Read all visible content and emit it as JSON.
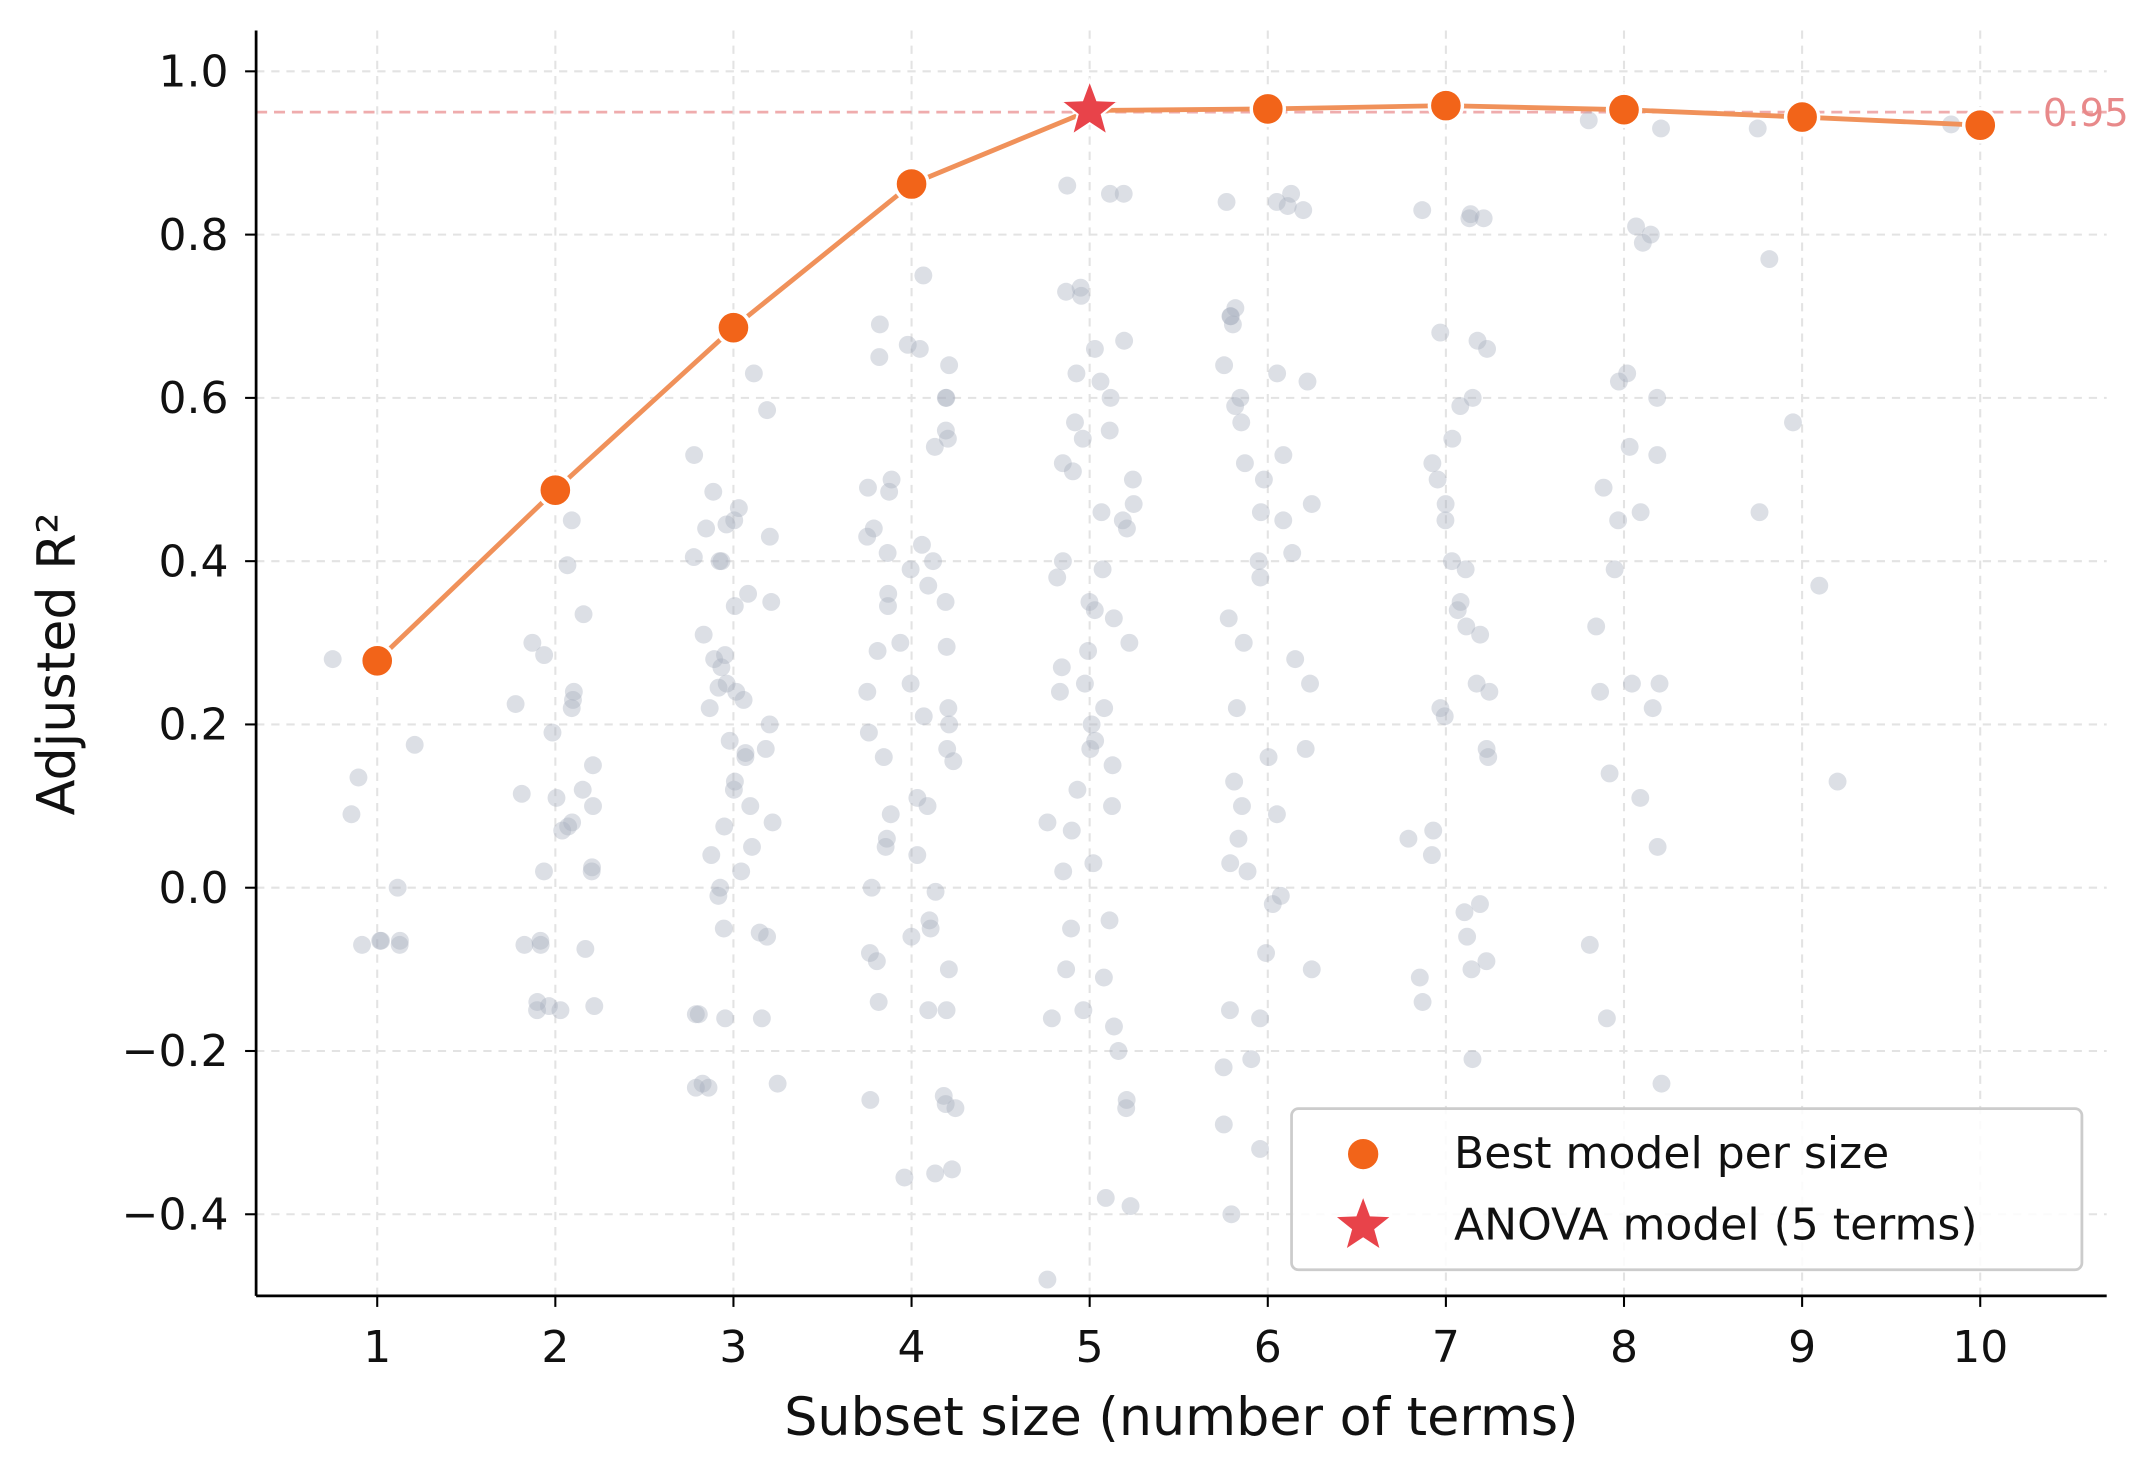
{
  "chart_data": {
    "type": "scatter",
    "xlabel": "Subset size (number of terms)",
    "ylabel": "Adjusted R²",
    "xlim": [
      0.32,
      10.71
    ],
    "ylim": [
      -0.5,
      1.05
    ],
    "xticks": [
      1,
      2,
      3,
      4,
      5,
      6,
      7,
      8,
      9,
      10
    ],
    "xtick_labels": [
      "1",
      "2",
      "3",
      "4",
      "5",
      "6",
      "7",
      "8",
      "9",
      "10"
    ],
    "yticks": [
      -0.4,
      -0.2,
      0.0,
      0.2,
      0.4,
      0.6,
      0.8,
      1.0
    ],
    "ytick_labels": [
      "−0.4",
      "−0.2",
      "0.0",
      "0.2",
      "0.4",
      "0.6",
      "0.8",
      "1.0"
    ],
    "grid": true,
    "legend_placement": "lower-right",
    "reference_line": {
      "y": 0.95,
      "label": "0.95",
      "color": "#e8898a"
    },
    "series": [
      {
        "name": "Best model per size",
        "type": "line+markers",
        "color": "#f26419",
        "line_color": "#f0915a",
        "x": [
          1,
          2,
          3,
          4,
          5,
          6,
          7,
          8,
          9,
          10
        ],
        "y": [
          0.278,
          0.487,
          0.686,
          0.862,
          0.952,
          0.954,
          0.958,
          0.953,
          0.944,
          0.934
        ]
      },
      {
        "name": "ANOVA model (5 terms)",
        "type": "star",
        "color": "#e8434a",
        "x": [
          5
        ],
        "y": [
          0.952
        ]
      },
      {
        "type": "scatter",
        "color": "#a8b0bd",
        "points_by_size": {
          "1": [
            0.28,
            0.175,
            0.135,
            0.09,
            0.0,
            -0.065,
            -0.07,
            -0.07,
            -0.065,
            -0.065
          ],
          "2": [
            0.45,
            0.395,
            0.335,
            0.3,
            0.285,
            0.24,
            0.23,
            0.225,
            0.22,
            0.19,
            0.15,
            0.12,
            0.115,
            0.11,
            0.1,
            0.08,
            0.075,
            0.07,
            0.025,
            0.02,
            0.02,
            -0.07,
            -0.075,
            -0.065,
            -0.07,
            -0.14,
            -0.145,
            -0.15,
            -0.145,
            -0.15
          ],
          "3": [
            0.63,
            0.585,
            0.53,
            0.485,
            0.465,
            0.45,
            0.445,
            0.44,
            0.43,
            0.405,
            0.4,
            0.4,
            0.36,
            0.35,
            0.345,
            0.31,
            0.285,
            0.28,
            0.27,
            0.25,
            0.245,
            0.24,
            0.23,
            0.22,
            0.2,
            0.18,
            0.17,
            0.165,
            0.16,
            0.13,
            0.12,
            0.1,
            0.08,
            0.075,
            0.05,
            0.04,
            0.02,
            0.0,
            -0.01,
            -0.05,
            -0.055,
            -0.06,
            -0.155,
            -0.16,
            -0.155,
            -0.16,
            -0.24,
            -0.245,
            -0.24,
            -0.245
          ],
          "4": [
            0.75,
            0.69,
            0.665,
            0.66,
            0.65,
            0.64,
            0.6,
            0.6,
            0.56,
            0.55,
            0.54,
            0.5,
            0.49,
            0.485,
            0.44,
            0.43,
            0.42,
            0.41,
            0.4,
            0.39,
            0.37,
            0.36,
            0.35,
            0.345,
            0.3,
            0.295,
            0.29,
            0.25,
            0.24,
            0.22,
            0.21,
            0.2,
            0.19,
            0.17,
            0.16,
            0.155,
            0.11,
            0.1,
            0.09,
            0.06,
            0.05,
            0.04,
            0.0,
            -0.005,
            -0.04,
            -0.05,
            -0.06,
            -0.08,
            -0.09,
            -0.1,
            -0.14,
            -0.15,
            -0.15,
            -0.26,
            -0.265,
            -0.255,
            -0.27,
            -0.345,
            -0.35,
            -0.355
          ],
          "5": [
            0.86,
            0.85,
            0.85,
            0.735,
            0.73,
            0.725,
            0.67,
            0.66,
            0.63,
            0.62,
            0.6,
            0.57,
            0.56,
            0.55,
            0.52,
            0.51,
            0.5,
            0.47,
            0.46,
            0.45,
            0.44,
            0.4,
            0.39,
            0.38,
            0.35,
            0.34,
            0.33,
            0.3,
            0.29,
            0.27,
            0.25,
            0.24,
            0.22,
            0.2,
            0.18,
            0.17,
            0.15,
            0.12,
            0.1,
            0.08,
            0.07,
            0.03,
            0.02,
            -0.04,
            -0.05,
            -0.1,
            -0.11,
            -0.15,
            -0.16,
            -0.17,
            -0.2,
            -0.26,
            -0.27,
            -0.38,
            -0.39,
            -0.48
          ],
          "6": [
            0.85,
            0.84,
            0.835,
            0.83,
            0.84,
            0.71,
            0.7,
            0.69,
            0.7,
            0.64,
            0.63,
            0.62,
            0.6,
            0.59,
            0.57,
            0.53,
            0.52,
            0.5,
            0.47,
            0.46,
            0.45,
            0.41,
            0.4,
            0.38,
            0.33,
            0.3,
            0.28,
            0.25,
            0.22,
            0.17,
            0.16,
            0.13,
            0.1,
            0.09,
            0.06,
            0.03,
            0.02,
            -0.01,
            -0.02,
            -0.08,
            -0.1,
            -0.15,
            -0.16,
            -0.21,
            -0.22,
            -0.29,
            -0.32,
            -0.4
          ],
          "7": [
            0.83,
            0.82,
            0.825,
            0.82,
            0.68,
            0.67,
            0.66,
            0.6,
            0.59,
            0.55,
            0.52,
            0.5,
            0.47,
            0.45,
            0.4,
            0.39,
            0.35,
            0.34,
            0.32,
            0.31,
            0.25,
            0.24,
            0.22,
            0.21,
            0.17,
            0.16,
            0.07,
            0.06,
            0.04,
            -0.02,
            -0.03,
            -0.06,
            -0.09,
            -0.1,
            -0.11,
            -0.14,
            -0.21
          ],
          "8": [
            0.94,
            0.93,
            0.8,
            0.81,
            0.79,
            0.63,
            0.62,
            0.6,
            0.54,
            0.53,
            0.49,
            0.46,
            0.45,
            0.39,
            0.32,
            0.25,
            0.24,
            0.25,
            0.22,
            0.14,
            0.11,
            0.05,
            -0.07,
            -0.16,
            -0.24
          ],
          "9": [
            0.93,
            0.77,
            0.57,
            0.46,
            0.37,
            0.13
          ],
          "10": [
            0.935
          ]
        }
      }
    ]
  }
}
